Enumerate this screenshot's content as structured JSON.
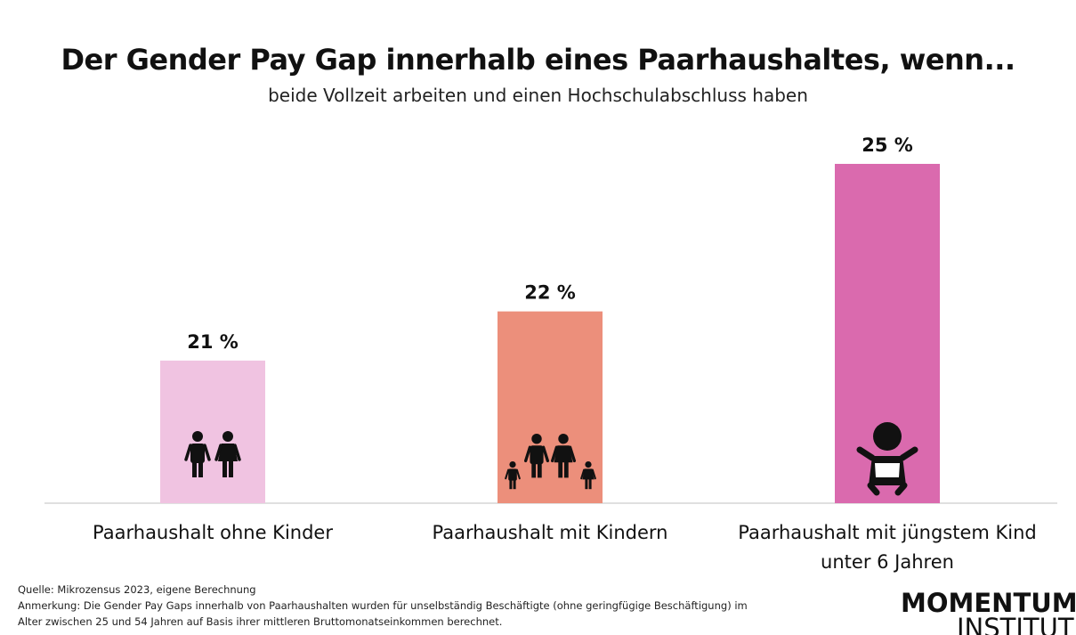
{
  "chart_data": {
    "type": "bar",
    "title": "Der Gender Pay Gap innerhalb eines Paarhaushaltes, wenn...",
    "subtitle": "beide Vollzeit arbeiten und einen Hochschulabschluss haben",
    "categories": [
      "Paarhaushalt ohne Kinder",
      "Paarhaushalt mit Kindern",
      "Paarhaushalt mit jüngstem Kind unter 6 Jahren"
    ],
    "values": [
      21,
      22,
      25
    ],
    "value_labels": [
      "21 %",
      "22 %",
      "25 %"
    ],
    "colors": [
      "#f0c3e1",
      "#ec8f7b",
      "#da6aae"
    ],
    "ylim": [
      18.1,
      25
    ],
    "source": "Quelle: Mikrozensus 2023, eigene Berechnung",
    "note": "Anmerkung: Die Gender Pay Gaps innerhalb von Paarhaushalten wurden für unselbständig Beschäftigte (ohne geringfügige Beschäftigung)  im Alter zwischen 25 und 54 Jahren auf Basis ihrer mittleren Bruttomonatseinkommen berechnet.",
    "logo": [
      "MOMENTUM",
      "INSTITUT"
    ]
  }
}
